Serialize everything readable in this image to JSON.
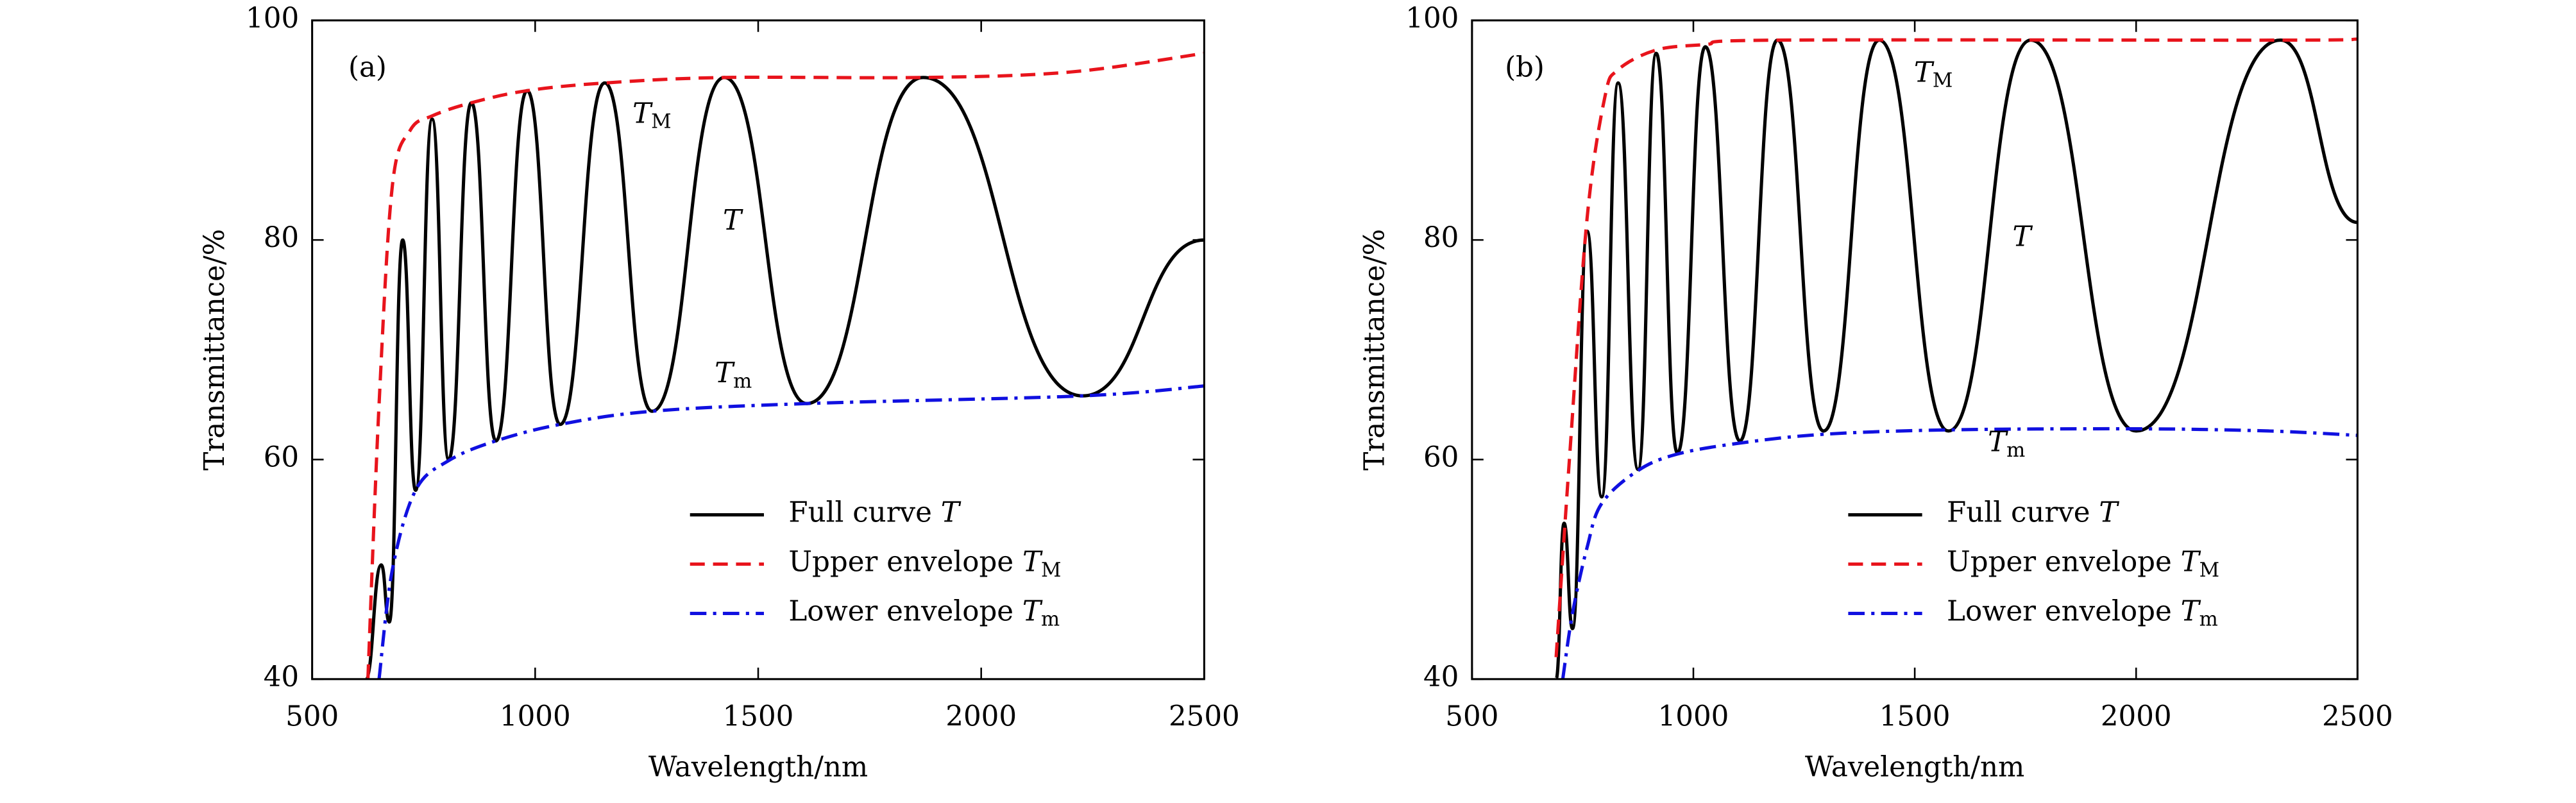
{
  "chart_data": [
    {
      "type": "line",
      "xlabel": "Wavelength/nm",
      "ylabel": "Transmittance/%",
      "annotations": [
        "(a)",
        "TM",
        "T",
        "Tm"
      ],
      "xlim": [
        500,
        2500
      ],
      "xticks": [
        500,
        1000,
        1500,
        2000,
        2500
      ],
      "ylim": [
        40,
        100
      ],
      "yticks": [
        40,
        60,
        80,
        100
      ],
      "legend": "lower right",
      "series": [
        {
          "name": "Full curve T",
          "color": "#000000",
          "style": "solid",
          "x": [
            620,
            655,
            673,
            703,
            732,
            769,
            806,
            857,
            912,
            982,
            1056,
            1156,
            1262,
            1424,
            1609,
            1870,
            2227,
            2500
          ],
          "values": [
            40,
            50.4,
            45.2,
            80,
            57.2,
            91,
            60,
            92.5,
            61.7,
            93.6,
            63.2,
            94.3,
            64.4,
            94.8,
            65.1,
            94.8,
            65.8,
            80
          ]
        },
        {
          "name": "Upper envelope TM",
          "color": "#e8141c",
          "style": "dashed",
          "x": [
            625,
            650,
            680,
            720,
            769,
            857,
            982,
            1156,
            1424,
            1870,
            2200,
            2500
          ],
          "values": [
            40,
            65,
            85,
            90,
            91.3,
            92.5,
            93.6,
            94.3,
            94.8,
            94.8,
            95.3,
            97
          ]
        },
        {
          "name": "Lower envelope Tm",
          "color": "#1010e0",
          "style": "dashdot",
          "x": [
            650,
            680,
            732,
            806,
            912,
            1056,
            1262,
            1609,
            2227,
            2500
          ],
          "values": [
            40,
            50,
            57.2,
            59.9,
            61.7,
            63.2,
            64.4,
            65.1,
            65.8,
            66.7
          ]
        }
      ]
    },
    {
      "type": "line",
      "xlabel": "Wavelength/nm",
      "ylabel": "Transmittance/%",
      "annotations": [
        "(b)",
        "TM",
        "T",
        "Tm"
      ],
      "xlim": [
        500,
        2500
      ],
      "xticks": [
        500,
        1000,
        1500,
        2000,
        2500
      ],
      "ylim": [
        40,
        100
      ],
      "yticks": [
        40,
        60,
        80,
        100
      ],
      "legend": "lower right",
      "series": [
        {
          "name": "Full curve T",
          "color": "#000000",
          "style": "solid",
          "x": [
            690,
            708,
            727,
            760,
            793,
            830,
            875,
            916,
            964,
            1027,
            1105,
            1190,
            1294,
            1420,
            1576,
            1762,
            2000,
            2326,
            2500
          ],
          "values": [
            40,
            54.2,
            44.6,
            80.8,
            56.6,
            94.3,
            59.1,
            97,
            60.6,
            97.6,
            61.7,
            98.2,
            62.6,
            98.2,
            62.6,
            98.2,
            62.6,
            98.2,
            81.6
          ]
        },
        {
          "name": "Upper envelope TM",
          "color": "#e8141c",
          "style": "dashed",
          "x": [
            690,
            720,
            760,
            800,
            830,
            916,
            1027,
            1190,
            2326,
            2500
          ],
          "values": [
            42,
            60,
            82,
            93,
            95.5,
            97.3,
            97.8,
            98.2,
            98.2,
            98.3
          ]
        },
        {
          "name": "Lower envelope Tm",
          "color": "#1010e0",
          "style": "dashdot",
          "x": [
            705,
            727,
            760,
            793,
            875,
            964,
            1105,
            1294,
            1576,
            2000,
            2300,
            2500
          ],
          "values": [
            40,
            46,
            52,
            56,
            59,
            60.5,
            61.5,
            62.3,
            62.7,
            62.8,
            62.6,
            62.2
          ]
        }
      ]
    }
  ]
}
